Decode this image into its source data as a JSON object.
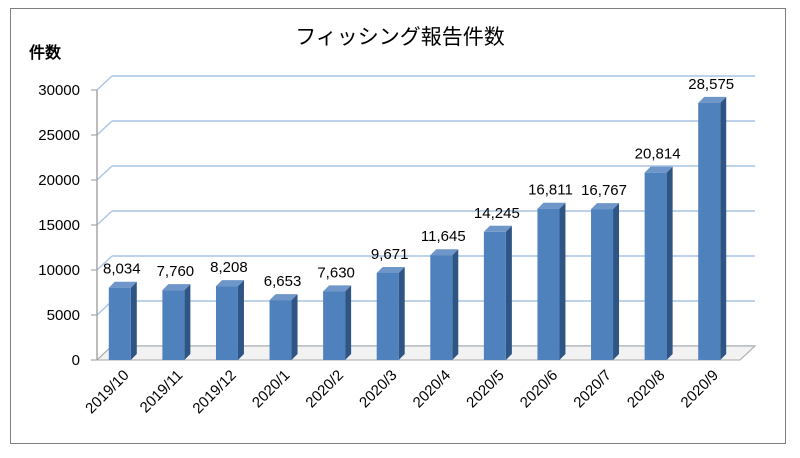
{
  "chart_data": {
    "type": "bar",
    "title": "フィッシング報告件数",
    "ylabel": "件数",
    "xlabel": "",
    "categories": [
      "2019/10",
      "2019/11",
      "2019/12",
      "2020/1",
      "2020/2",
      "2020/3",
      "2020/4",
      "2020/5",
      "2020/6",
      "2020/7",
      "2020/8",
      "2020/9"
    ],
    "values": [
      8034,
      7760,
      8208,
      6653,
      7630,
      9671,
      11645,
      14245,
      16811,
      16767,
      20814,
      28575
    ],
    "data_labels": [
      "8,034",
      "7,760",
      "8,208",
      "6,653",
      "7,630",
      "9,671",
      "11,645",
      "14,245",
      "16,811",
      "16,767",
      "20,814",
      "28,575"
    ],
    "ylim": [
      0,
      30000
    ],
    "yticks": [
      "0",
      "5000",
      "10000",
      "15000",
      "20000",
      "25000",
      "30000"
    ],
    "grid": true,
    "style": "3d-column",
    "colors": {
      "bar_front": "#4f81bd",
      "bar_side": "#2f5585",
      "bar_top": "#6f96c8",
      "grid": "#a9c4e4",
      "axis": "#a6a6a6"
    }
  }
}
